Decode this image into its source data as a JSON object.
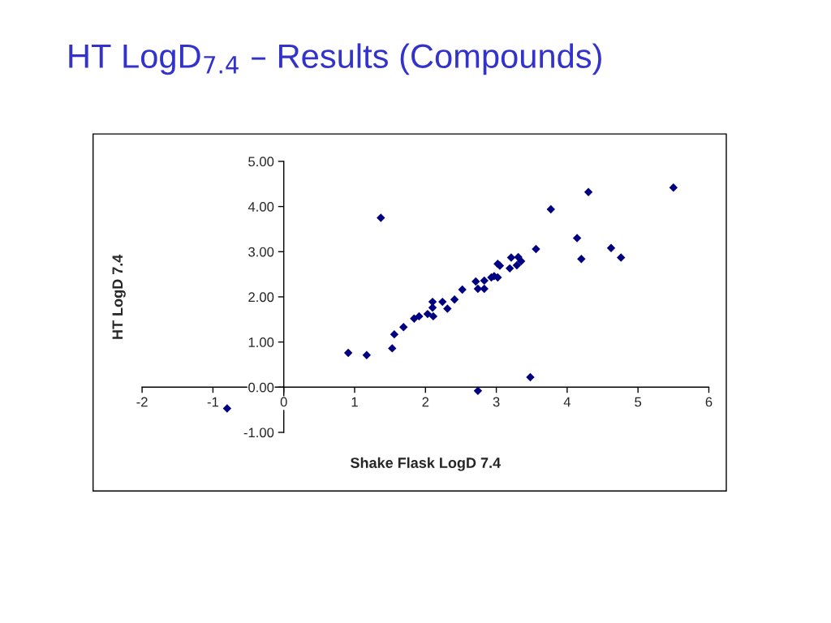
{
  "chart_data": {
    "type": "scatter",
    "title": "HT LogD$_{7.4}$ – Results (Compounds)",
    "xlabel": "Shake Flask LogD 7.4",
    "ylabel": "HT LogD 7.4",
    "x": [
      -0.8,
      0.91,
      1.17,
      1.37,
      1.53,
      1.56,
      1.69,
      1.84,
      1.91,
      2.03,
      2.1,
      2.1,
      2.11,
      2.24,
      2.31,
      2.41,
      2.52,
      2.71,
      2.74,
      2.74,
      2.83,
      2.83,
      2.93,
      2.97,
      3.02,
      3.02,
      3.05,
      3.19,
      3.21,
      3.29,
      3.31,
      3.35,
      3.48,
      3.56,
      3.77,
      4.14,
      4.2,
      4.3,
      4.62,
      4.76,
      5.5
    ],
    "values": [
      -0.47,
      0.76,
      0.71,
      3.75,
      0.86,
      1.17,
      1.33,
      1.52,
      1.57,
      1.62,
      1.89,
      1.76,
      1.57,
      1.89,
      1.74,
      1.94,
      2.16,
      2.34,
      2.18,
      -0.08,
      2.18,
      2.36,
      2.43,
      2.46,
      2.43,
      2.73,
      2.69,
      2.63,
      2.87,
      2.7,
      2.88,
      2.79,
      0.22,
      3.06,
      3.94,
      3.3,
      2.84,
      4.32,
      3.08,
      2.87,
      4.42
    ],
    "color": "#000080",
    "marker": "diamond",
    "xlim": [
      -2,
      6
    ],
    "xticks": [
      -2,
      -1,
      0,
      1,
      2,
      3,
      4,
      5,
      6
    ],
    "ylim": [
      -1,
      5
    ],
    "yticks": [
      {
        "value": -1,
        "label": "-1.00"
      },
      {
        "value": 0,
        "label": "0.00"
      },
      {
        "value": 1,
        "label": "1.00"
      },
      {
        "value": 2,
        "label": "2.00"
      },
      {
        "value": 3,
        "label": "3.00"
      },
      {
        "value": 4,
        "label": "4.00"
      },
      {
        "value": 5,
        "label": "5.00"
      }
    ],
    "grid": false,
    "legend": false
  }
}
